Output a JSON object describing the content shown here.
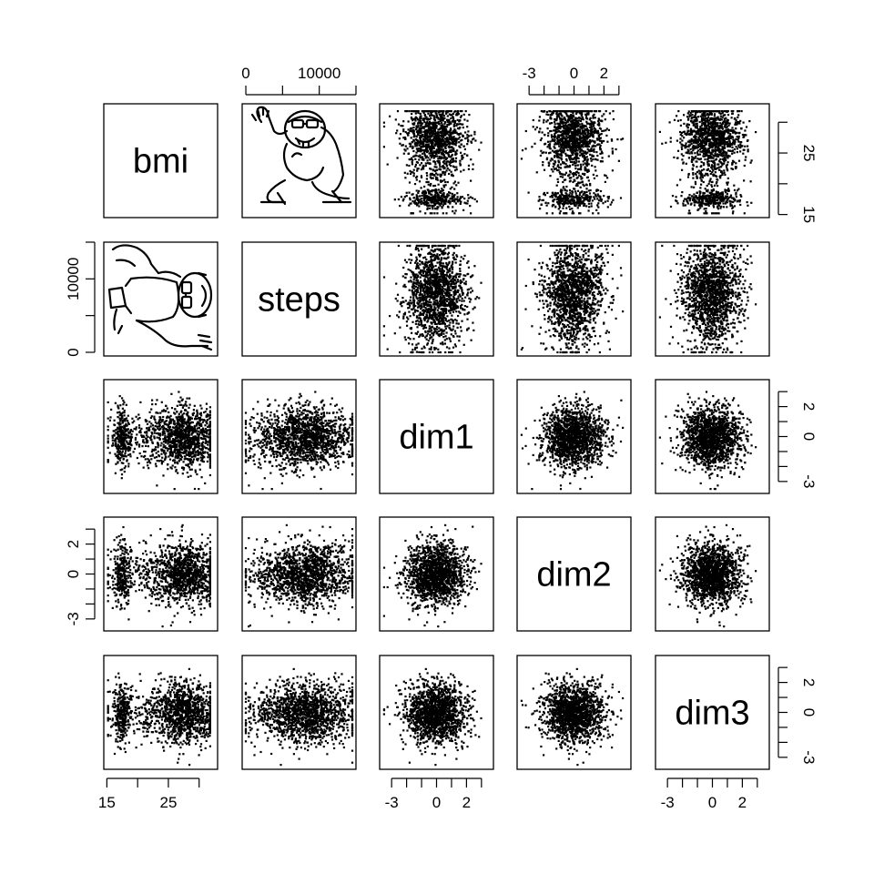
{
  "chart_data": {
    "type": "scatter",
    "layout": "scatterplot-matrix",
    "variables": [
      "bmi",
      "steps",
      "dim1",
      "dim2",
      "dim3"
    ],
    "ranges": {
      "bmi": [
        14.5,
        33
      ],
      "steps": [
        -500,
        15000
      ],
      "dim1": [
        -3.8,
        3.8
      ],
      "dim2": [
        -3.8,
        3.8
      ],
      "dim3": [
        -3.8,
        3.8
      ]
    },
    "ticks": {
      "bmi": {
        "labeled": [
          15,
          25
        ],
        "minor": [
          20,
          30
        ]
      },
      "steps": {
        "labeled": [
          0,
          10000
        ],
        "minor": [
          5000,
          15000
        ]
      },
      "dim1": {
        "labeled": [
          -3,
          0,
          2
        ],
        "minor": [
          -2,
          -1,
          1,
          3
        ]
      },
      "dim2": {
        "labeled": [
          -3,
          0,
          2
        ],
        "minor": [
          -2,
          -1,
          1,
          3
        ]
      },
      "dim3": {
        "labeled": [
          -3,
          0,
          2
        ],
        "minor": [
          -2,
          -1,
          1,
          3
        ]
      }
    },
    "distributions": {
      "bmi": {
        "description": "bimodal",
        "clusters": [
          {
            "center": 17.5,
            "spread": 0.7,
            "weight": 0.2
          },
          {
            "center": 28,
            "spread": 2.5,
            "weight": 0.6
          },
          {
            "center": 23,
            "spread": 4,
            "weight": 0.2
          }
        ]
      },
      "steps": {
        "description": "broad",
        "min": 0,
        "max": 14500,
        "center": 8000,
        "spread": 3500
      },
      "dim1": {
        "mean": 0,
        "sd": 1
      },
      "dim2": {
        "mean": 0,
        "sd": 1
      },
      "dim3": {
        "mean": 0,
        "sd": 1
      }
    },
    "n_points": 1500,
    "hidden_panels": [
      [
        0,
        1
      ],
      [
        1,
        0
      ]
    ],
    "hidden_panel_content": "gorilla drawing",
    "point_color": "#000000"
  }
}
